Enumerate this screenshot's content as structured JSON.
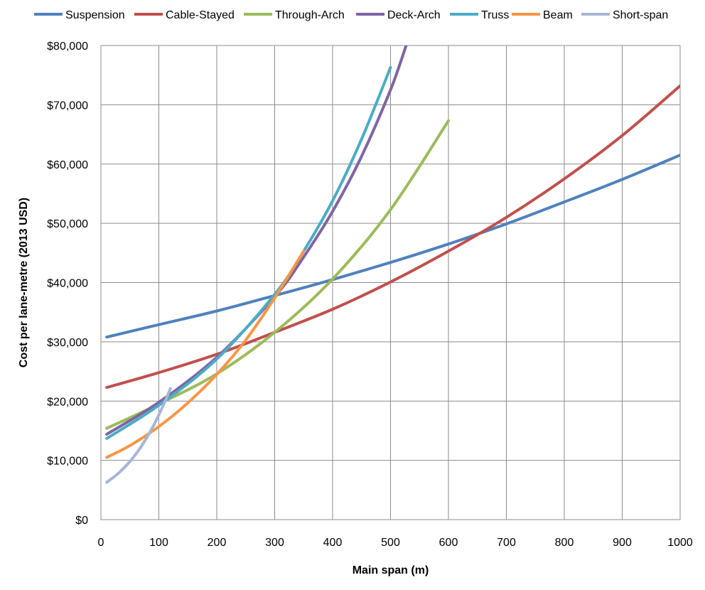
{
  "chart_data": {
    "type": "line",
    "xlabel": "Main span (m)",
    "ylabel": "Cost per lane-metre (2013 USD)",
    "xlim": [
      0,
      1000
    ],
    "ylim": [
      0,
      80000
    ],
    "x_ticks": [
      "0",
      "100",
      "200",
      "300",
      "400",
      "500",
      "600",
      "700",
      "800",
      "900",
      "1000"
    ],
    "y_ticks": [
      "$0",
      "$10,000",
      "$20,000",
      "$30,000",
      "$40,000",
      "$50,000",
      "$60,000",
      "$70,000",
      "$80,000"
    ],
    "grid": true,
    "legend_position": "top",
    "series": [
      {
        "name": "Suspension",
        "color": "#4F81BD",
        "x": [
          10,
          100,
          200,
          300,
          400,
          500,
          600,
          700,
          800,
          900,
          1000
        ],
        "y": [
          30800,
          32900,
          35200,
          37800,
          40500,
          43400,
          46500,
          49900,
          53600,
          57400,
          61500
        ]
      },
      {
        "name": "Cable-Stayed",
        "color": "#C0504D",
        "x": [
          10,
          100,
          200,
          300,
          400,
          500,
          600,
          700,
          800,
          900,
          1000
        ],
        "y": [
          22300,
          24800,
          27900,
          31600,
          35500,
          40100,
          45300,
          51000,
          57500,
          64800,
          73200
        ]
      },
      {
        "name": "Through-Arch",
        "color": "#9BBB59",
        "x": [
          10,
          100,
          200,
          300,
          400,
          500,
          600
        ],
        "y": [
          15400,
          19500,
          24600,
          31600,
          40600,
          52300,
          67300
        ]
      },
      {
        "name": "Deck-Arch",
        "color": "#8064A2",
        "x": [
          10,
          100,
          200,
          300,
          350,
          400,
          450,
          500,
          527
        ],
        "y": [
          14400,
          19800,
          27400,
          37600,
          44300,
          52000,
          61300,
          72500,
          80000
        ]
      },
      {
        "name": "Truss",
        "color": "#4BACC6",
        "x": [
          10,
          100,
          200,
          300,
          350,
          400,
          450,
          500
        ],
        "y": [
          13700,
          19300,
          27100,
          38000,
          45300,
          53800,
          64200,
          76300
        ]
      },
      {
        "name": "Beam",
        "color": "#F79646",
        "x": [
          10,
          50,
          100,
          150,
          200,
          250,
          300,
          350
        ],
        "y": [
          10500,
          12500,
          15700,
          19700,
          24500,
          30300,
          37400,
          45300
        ]
      },
      {
        "name": "Short-span",
        "color": "#A5B6D5",
        "x": [
          10,
          30,
          50,
          70,
          90,
          110,
          120
        ],
        "y": [
          6300,
          7800,
          9800,
          12400,
          15700,
          19800,
          22100
        ]
      }
    ]
  }
}
